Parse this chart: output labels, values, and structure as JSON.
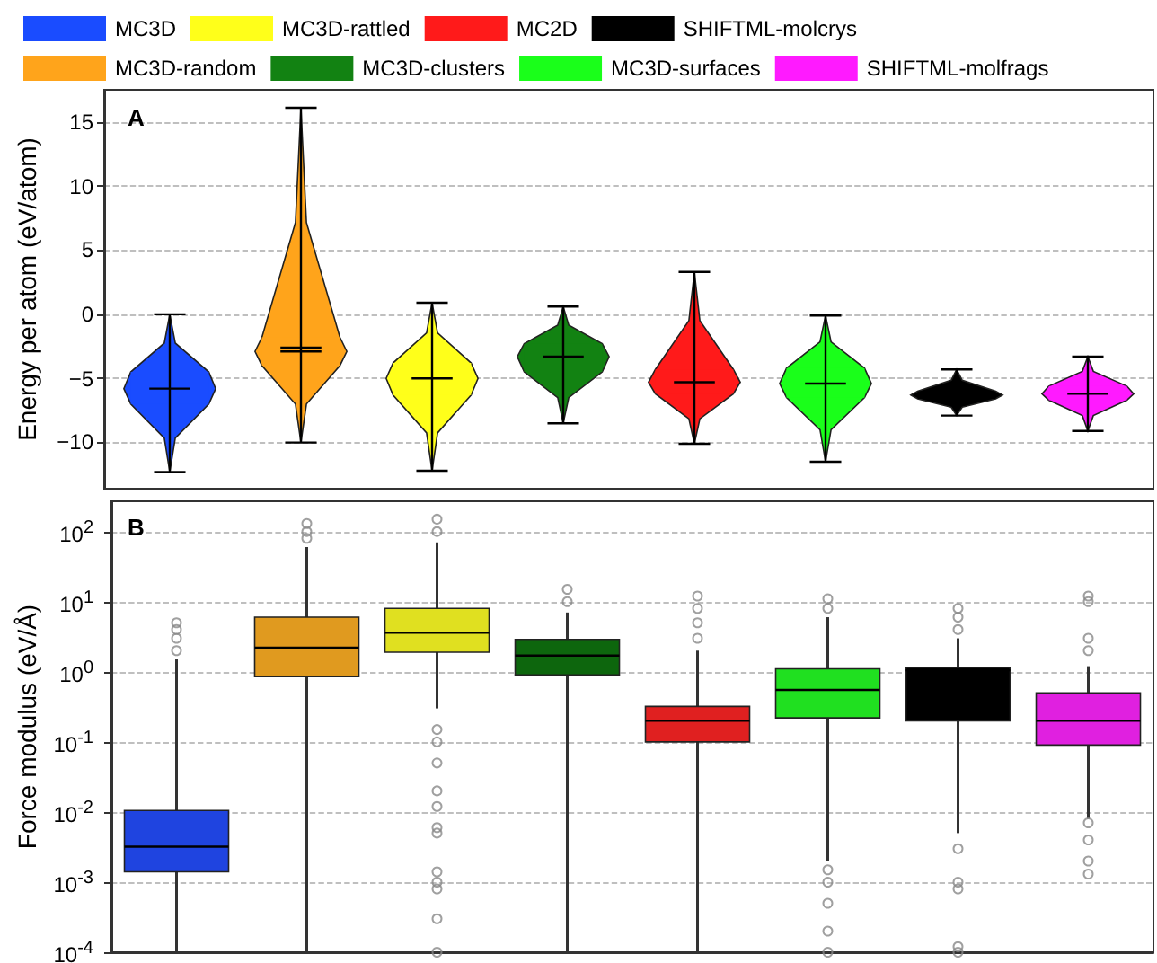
{
  "chart_data": [
    {
      "type": "box",
      "title": "A",
      "ylabel": "Energy per atom (eV/atom)",
      "categories": [
        null,
        null,
        null,
        null,
        null,
        null,
        null,
        null
      ],
      "series": [
        {
          "name": "MC3D",
          "color": "#1a4cff",
          "boxes": [
            {
              "low": -12.3,
              "q1": -7,
              "median": -5.8,
              "q3": -4.5,
              "high": 0
            },
            null,
            null,
            null,
            null,
            null,
            null,
            null
          ]
        },
        {
          "name": "MC3D-random",
          "color": "#ffa41b",
          "boxes": [
            null,
            {
              "low": -10,
              "q1": -4,
              "median": -2.9,
              "mean": -2.6,
              "q3": -1.8,
              "high": 16.1
            },
            null,
            null,
            null,
            null,
            null,
            null
          ]
        },
        {
          "name": "MC3D-rattled",
          "color": "#ffff1a",
          "boxes": [
            null,
            null,
            {
              "low": -12.2,
              "q1": -6.3,
              "median": -5,
              "q3": -3.8,
              "high": 0.9
            },
            null,
            null,
            null,
            null,
            null
          ]
        },
        {
          "name": "MC3D-clusters",
          "color": "#128212",
          "boxes": [
            null,
            null,
            null,
            {
              "low": -8.5,
              "q1": -4.5,
              "median": -3.3,
              "q3": -2.3,
              "high": 0.6
            },
            null,
            null,
            null,
            null
          ]
        },
        {
          "name": "MC2D",
          "color": "#ff1a1a",
          "boxes": [
            null,
            null,
            null,
            null,
            {
              "low": -10.1,
              "q1": -6.2,
              "median": -5.3,
              "q3": -4.3,
              "high": 3.3
            },
            null,
            null,
            null
          ]
        },
        {
          "name": "MC3D-surfaces",
          "color": "#1aff1a",
          "boxes": [
            null,
            null,
            null,
            null,
            null,
            {
              "low": -11.5,
              "q1": -6.5,
              "median": -5.4,
              "q3": -4.2,
              "high": -0.1
            },
            null,
            null
          ]
        },
        {
          "name": "SHIFTML-molcrys",
          "color": "#000000",
          "boxes": [
            null,
            null,
            null,
            null,
            null,
            null,
            {
              "low": -7.9,
              "q1": -6.6,
              "median": -6.3,
              "q3": -6,
              "high": -4.3
            },
            null
          ]
        },
        {
          "name": "SHIFTML-molfrags",
          "color": "#ff1aff",
          "boxes": [
            null,
            null,
            null,
            null,
            null,
            null,
            null,
            {
              "low": -9.1,
              "q1": -6.7,
              "median": -6.2,
              "q3": -5.6,
              "high": -3.3
            }
          ]
        }
      ],
      "ylim": [
        -13.6,
        17.5
      ],
      "yticks": [
        {
          "value": -10,
          "label": "−10"
        },
        {
          "value": -5,
          "label": "−5"
        },
        0,
        5,
        10,
        15
      ],
      "grid": "y",
      "legend": "top",
      "tick_labels": "y"
    },
    {
      "type": "box",
      "title": "B",
      "ylabel": "Force modulus (eV/Å)",
      "categories": [
        null,
        null,
        null,
        null,
        null,
        null,
        null,
        null
      ],
      "log": true,
      "series": [
        {
          "color": "#1f44e0",
          "boxes": [
            {
              "low": 0.0001,
              "q1": 0.0014,
              "median": 0.0032,
              "q3": 0.0105,
              "high": 1.5,
              "outliers": [
                2,
                3,
                4,
                5
              ]
            },
            null,
            null,
            null,
            null,
            null,
            null,
            null
          ]
        },
        {
          "color": "#e09a1f",
          "boxes": [
            null,
            {
              "low": 0.0001,
              "q1": 0.85,
              "median": 2.2,
              "q3": 6,
              "high": 60,
              "outliers": [
                80,
                100,
                130
              ]
            },
            null,
            null,
            null,
            null,
            null,
            null
          ]
        },
        {
          "color": "#e0e020",
          "boxes": [
            null,
            null,
            {
              "low": 0.3,
              "q1": 1.9,
              "median": 3.6,
              "q3": 8,
              "high": 70,
              "outliers": [
                100,
                150,
                0.15,
                0.1,
                0.05,
                0.02,
                0.012,
                0.006,
                0.005,
                0.0014,
                0.001,
                0.0008,
                0.0003,
                0.0001
              ]
            },
            null,
            null,
            null,
            null,
            null
          ]
        },
        {
          "color": "#0d660d",
          "boxes": [
            null,
            null,
            null,
            {
              "low": 0.0001,
              "q1": 0.9,
              "median": 1.7,
              "q3": 2.9,
              "high": 7,
              "outliers": [
                10,
                15
              ]
            },
            null,
            null,
            null,
            null
          ]
        },
        {
          "color": "#e02020",
          "boxes": [
            null,
            null,
            null,
            null,
            {
              "low": 0.0001,
              "q1": 0.1,
              "median": 0.2,
              "q3": 0.32,
              "high": 2,
              "outliers": [
                3,
                5,
                8,
                12
              ]
            },
            null,
            null,
            null
          ]
        },
        {
          "color": "#20e020",
          "boxes": [
            null,
            null,
            null,
            null,
            null,
            {
              "low": 0.002,
              "q1": 0.22,
              "median": 0.55,
              "q3": 1.1,
              "high": 6,
              "outliers": [
                8,
                11,
                0.0015,
                0.001,
                0.0005,
                0.0002,
                0.0001
              ]
            },
            null,
            null
          ]
        },
        {
          "color": "#000000",
          "boxes": [
            null,
            null,
            null,
            null,
            null,
            null,
            {
              "low": 0.005,
              "q1": 0.2,
              "median": 1.05,
              "q3": 1.15,
              "high": 3,
              "outliers": [
                4,
                6,
                8,
                0.003,
                0.001,
                0.0008,
                0.00012,
                0.0001
              ]
            },
            null
          ]
        },
        {
          "color": "#e020e0",
          "boxes": [
            null,
            null,
            null,
            null,
            null,
            null,
            null,
            {
              "low": 0.008,
              "q1": 0.09,
              "median": 0.2,
              "q3": 0.5,
              "high": 1.2,
              "outliers": [
                2,
                3,
                10,
                12,
                0.007,
                0.004,
                0.002,
                0.0013
              ]
            }
          ]
        }
      ],
      "ylim": [
        0.0001,
        270
      ],
      "yticks": [
        {
          "value": 0.0001,
          "label": "10$^{-4}$"
        },
        {
          "value": 0.001,
          "label": "10$^{-3}$"
        },
        {
          "value": 0.01,
          "label": "10$^{-2}$"
        },
        {
          "value": 0.1,
          "label": "10$^{-1}$"
        },
        {
          "value": 1,
          "label": "10$^{0}$"
        },
        {
          "value": 10,
          "label": "10$^{1}$"
        },
        {
          "value": 100,
          "label": "10$^{2}$"
        }
      ],
      "grid": "y",
      "tick_labels": "y"
    }
  ]
}
